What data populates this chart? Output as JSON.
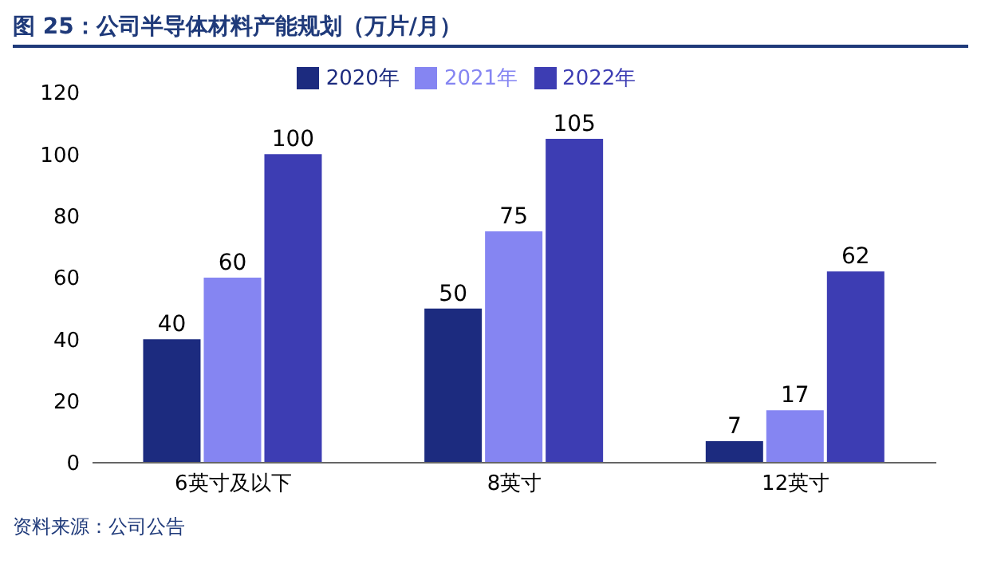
{
  "chart_data": {
    "type": "bar",
    "title": "图 25：公司半导体材料产能规划（万片/月）",
    "categories": [
      "6英寸及以下",
      "8英寸",
      "12英寸"
    ],
    "series": [
      {
        "name": "2020年",
        "color": "#1c2b7f",
        "values": [
          40,
          50,
          7
        ]
      },
      {
        "name": "2021年",
        "color": "#8585f2",
        "values": [
          60,
          75,
          17
        ]
      },
      {
        "name": "2022年",
        "color": "#3d3db3",
        "values": [
          100,
          105,
          62
        ]
      }
    ],
    "ylim": [
      0,
      120
    ],
    "yticks": [
      0,
      20,
      40,
      60,
      80,
      100,
      120
    ],
    "grid": false,
    "legend": "top",
    "data_labels": true,
    "annotations": [
      "资料来源：公司公告"
    ]
  }
}
